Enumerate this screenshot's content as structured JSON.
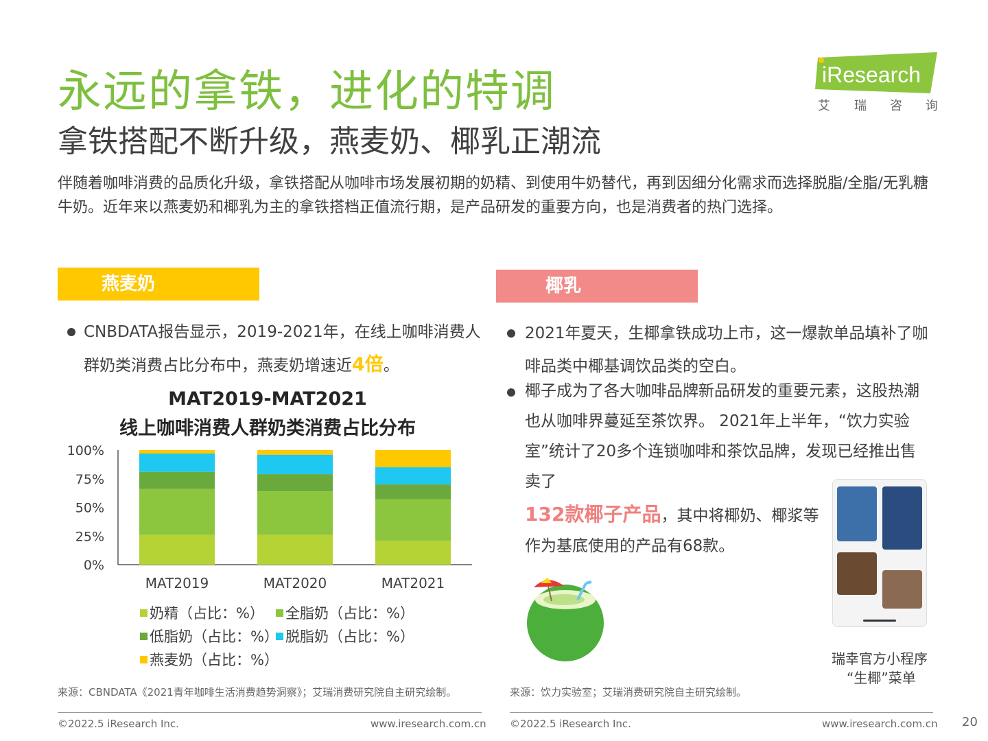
{
  "title": "永远的拿铁，进化的特调",
  "subtitle": "拿铁搭配不断升级，燕麦奶、椰乳正潮流",
  "intro": "伴随着咖啡消费的品质化升级，拿铁搭配从咖啡市场发展初期的奶精、到使用牛奶替代，再到因细分化需求而选择脱脂/全脂/无乳糖牛奶。近年来以燕麦奶和椰乳为主的拿铁搭档正值流行期，是产品研发的重要方向，也是消费者的热门选择。",
  "logo": {
    "text": "iResearch",
    "chars": [
      "艾",
      "瑞",
      "咨",
      "询"
    ]
  },
  "left": {
    "tag": "燕麦奶",
    "bullet_pre": "CNBDATA报告显示，2019-2021年，在线上咖啡消费人群奶类消费占比分布中，燕麦奶增速近",
    "bullet_highlight": "4倍",
    "bullet_post": "。",
    "source": "来源：CBNDATA《2021青年咖啡生活消费趋势洞察》；艾瑞消费研究院自主研究绘制。"
  },
  "right": {
    "tag": "椰乳",
    "bullet1": "2021年夏天，生椰拿铁成功上市，这一爆款单品填补了咖啡品类中椰基调饮品类的空白。",
    "bullet2": "椰子成为了各大咖啡品牌新品研发的重要元素，这股热潮也从咖啡界蔓延至茶饮界。 2021年上半年，“饮力实验室”统计了20多个连锁咖啡和茶饮品牌，发现已经推出售卖了",
    "highlight": "132款椰子产品",
    "bullet2_post": "，其中将椰奶、椰浆等作为基底使用的产品有68款。",
    "caption_line1": "瑞幸官方小程序",
    "caption_line2": "“生椰”菜单",
    "source": "来源：饮力实验室；艾瑞消费研究院自主研究绘制。"
  },
  "chart_data": {
    "type": "bar",
    "stacked": true,
    "title_line1": "MAT2019-MAT2021",
    "title_line2": "线上咖啡消费人群奶类消费占比分布",
    "categories": [
      "MAT2019",
      "MAT2020",
      "MAT2021"
    ],
    "ylim": [
      0,
      100
    ],
    "yticks": [
      "0%",
      "25%",
      "50%",
      "75%",
      "100%"
    ],
    "series": [
      {
        "name": "奶精（占比：%）",
        "color": "#b5d334",
        "values": [
          26,
          26,
          21
        ]
      },
      {
        "name": "全脂奶（占比：%）",
        "color": "#8cc63f",
        "values": [
          40,
          38,
          36
        ]
      },
      {
        "name": "低脂奶（占比：%）",
        "color": "#6aaa3c",
        "values": [
          15,
          15,
          13
        ]
      },
      {
        "name": "脱脂奶（占比：%）",
        "color": "#1ec8f0",
        "values": [
          16,
          17,
          15
        ]
      },
      {
        "name": "燕麦奶（占比：%）",
        "color": "#ffc800",
        "values": [
          3,
          4,
          15
        ]
      }
    ]
  },
  "footer": {
    "copyright": "©2022.5 iResearch Inc.",
    "url": "www.iresearch.com.cn",
    "page": "20"
  }
}
